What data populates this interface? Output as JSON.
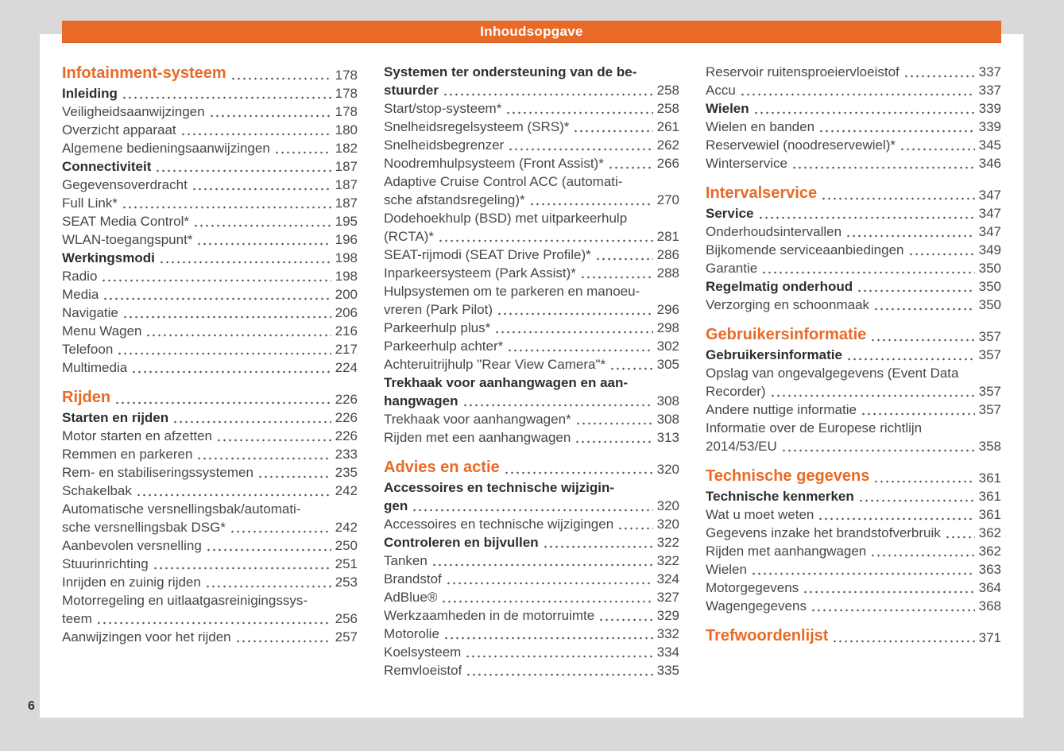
{
  "header": {
    "title": "Inhoudsopgave"
  },
  "footer": {
    "page_number": "6"
  },
  "colors": {
    "accent": "#E96A26",
    "canvas_bg": "#D9D9D9",
    "page_bg": "#FFFFFF",
    "text": "#474747"
  },
  "toc": {
    "columns": [
      [
        {
          "style": "section",
          "lines": [
            "Infotainment-systeem"
          ],
          "page": "178"
        },
        {
          "style": "bold",
          "lines": [
            "Inleiding"
          ],
          "page": "178"
        },
        {
          "style": "normal",
          "lines": [
            "Veiligheidsaanwijzingen"
          ],
          "page": "178"
        },
        {
          "style": "normal",
          "lines": [
            "Overzicht apparaat"
          ],
          "page": "180"
        },
        {
          "style": "normal",
          "lines": [
            "Algemene bedieningsaanwijzingen"
          ],
          "page": "182"
        },
        {
          "style": "bold",
          "lines": [
            "Connectiviteit"
          ],
          "page": "187"
        },
        {
          "style": "normal",
          "lines": [
            "Gegevensoverdracht"
          ],
          "page": "187"
        },
        {
          "style": "normal",
          "lines": [
            "Full Link*"
          ],
          "page": "187"
        },
        {
          "style": "normal",
          "lines": [
            "SEAT Media Control*"
          ],
          "page": "195"
        },
        {
          "style": "normal",
          "lines": [
            "WLAN-toegangspunt*"
          ],
          "page": "196"
        },
        {
          "style": "bold",
          "lines": [
            "Werkingsmodi"
          ],
          "page": "198"
        },
        {
          "style": "normal",
          "lines": [
            "Radio"
          ],
          "page": "198"
        },
        {
          "style": "normal",
          "lines": [
            "Media"
          ],
          "page": "200"
        },
        {
          "style": "normal",
          "lines": [
            "Navigatie"
          ],
          "page": "206"
        },
        {
          "style": "normal",
          "lines": [
            "Menu Wagen"
          ],
          "page": "216"
        },
        {
          "style": "normal",
          "lines": [
            "Telefoon"
          ],
          "page": "217"
        },
        {
          "style": "normal",
          "lines": [
            "Multimedia"
          ],
          "page": "224"
        },
        {
          "style": "section",
          "lines": [
            "Rijden"
          ],
          "page": "226"
        },
        {
          "style": "bold",
          "lines": [
            "Starten en rijden"
          ],
          "page": "226"
        },
        {
          "style": "normal",
          "lines": [
            "Motor starten en afzetten"
          ],
          "page": "226"
        },
        {
          "style": "normal",
          "lines": [
            "Remmen en parkeren"
          ],
          "page": "233"
        },
        {
          "style": "normal",
          "lines": [
            "Rem- en stabiliseringssystemen"
          ],
          "page": "235"
        },
        {
          "style": "normal",
          "lines": [
            "Schakelbak"
          ],
          "page": "242"
        },
        {
          "style": "normal",
          "lines": [
            "Automatische versnellingsbak/automati-",
            "sche versnellingsbak DSG*"
          ],
          "page": "242"
        },
        {
          "style": "normal",
          "lines": [
            "Aanbevolen versnelling"
          ],
          "page": "250"
        },
        {
          "style": "normal",
          "lines": [
            "Stuurinrichting"
          ],
          "page": "251"
        },
        {
          "style": "normal",
          "lines": [
            "Inrijden en zuinig rijden"
          ],
          "page": "253"
        },
        {
          "style": "normal",
          "lines": [
            "Motorregeling en uitlaatgasreinigingssys-",
            "teem"
          ],
          "page": "256"
        },
        {
          "style": "normal",
          "lines": [
            "Aanwijzingen voor het rijden"
          ],
          "page": "257"
        }
      ],
      [
        {
          "style": "bold",
          "lines": [
            "Systemen ter ondersteuning van de be-",
            "stuurder"
          ],
          "page": "258"
        },
        {
          "style": "normal",
          "lines": [
            "Start/stop-systeem*"
          ],
          "page": "258"
        },
        {
          "style": "normal",
          "lines": [
            "Snelheidsregelsysteem (SRS)*"
          ],
          "page": "261"
        },
        {
          "style": "normal",
          "lines": [
            "Snelheidsbegrenzer"
          ],
          "page": "262"
        },
        {
          "style": "normal",
          "lines": [
            "Noodremhulpsysteem (Front Assist)*"
          ],
          "page": "266"
        },
        {
          "style": "normal",
          "lines": [
            "Adaptive Cruise Control ACC (automati-",
            "sche afstandsregeling)*"
          ],
          "page": "270"
        },
        {
          "style": "normal",
          "lines": [
            "Dodehoekhulp (BSD) met uitparkeerhulp",
            "(RCTA)*"
          ],
          "page": "281"
        },
        {
          "style": "normal",
          "lines": [
            "SEAT-rijmodi (SEAT Drive Profile)*"
          ],
          "page": "286"
        },
        {
          "style": "normal",
          "lines": [
            "Inparkeersysteem (Park Assist)*"
          ],
          "page": "288"
        },
        {
          "style": "normal",
          "lines": [
            "Hulpsystemen om te parkeren en manoeu-",
            "vreren (Park Pilot)"
          ],
          "page": "296"
        },
        {
          "style": "normal",
          "lines": [
            "Parkeerhulp plus*"
          ],
          "page": "298"
        },
        {
          "style": "normal",
          "lines": [
            "Parkeerhulp achter*"
          ],
          "page": "302"
        },
        {
          "style": "normal",
          "lines": [
            "Achteruitrijhulp \"Rear View Camera\"*"
          ],
          "page": "305"
        },
        {
          "style": "bold",
          "lines": [
            "Trekhaak voor aanhangwagen en aan-",
            "hangwagen"
          ],
          "page": "308"
        },
        {
          "style": "normal",
          "lines": [
            "Trekhaak voor aanhangwagen*"
          ],
          "page": "308"
        },
        {
          "style": "normal",
          "lines": [
            "Rijden met een aanhangwagen"
          ],
          "page": "313"
        },
        {
          "style": "section",
          "lines": [
            "Advies en actie"
          ],
          "page": "320"
        },
        {
          "style": "bold",
          "lines": [
            "Accessoires en technische wijzigin-",
            "gen"
          ],
          "page": "320"
        },
        {
          "style": "normal",
          "lines": [
            "Accessoires en technische wijzigingen"
          ],
          "page": "320"
        },
        {
          "style": "bold",
          "lines": [
            "Controleren en bijvullen"
          ],
          "page": "322"
        },
        {
          "style": "normal",
          "lines": [
            "Tanken"
          ],
          "page": "322"
        },
        {
          "style": "normal",
          "lines": [
            "Brandstof"
          ],
          "page": "324"
        },
        {
          "style": "normal",
          "lines": [
            "AdBlue®"
          ],
          "page": "327"
        },
        {
          "style": "normal",
          "lines": [
            "Werkzaamheden in de motorruimte"
          ],
          "page": "329"
        },
        {
          "style": "normal",
          "lines": [
            "Motorolie"
          ],
          "page": "332"
        },
        {
          "style": "normal",
          "lines": [
            "Koelsysteem"
          ],
          "page": "334"
        },
        {
          "style": "normal",
          "lines": [
            "Remvloeistof"
          ],
          "page": "335"
        }
      ],
      [
        {
          "style": "normal",
          "lines": [
            "Reservoir ruitensproeiervloeistof"
          ],
          "page": "337"
        },
        {
          "style": "normal",
          "lines": [
            "Accu"
          ],
          "page": "337"
        },
        {
          "style": "bold",
          "lines": [
            "Wielen"
          ],
          "page": "339"
        },
        {
          "style": "normal",
          "lines": [
            "Wielen en banden"
          ],
          "page": "339"
        },
        {
          "style": "normal",
          "lines": [
            "Reservewiel (noodreservewiel)*"
          ],
          "page": "345"
        },
        {
          "style": "normal",
          "lines": [
            "Winterservice"
          ],
          "page": "346"
        },
        {
          "style": "section",
          "lines": [
            "Intervalservice"
          ],
          "page": "347"
        },
        {
          "style": "bold",
          "lines": [
            "Service"
          ],
          "page": "347"
        },
        {
          "style": "normal",
          "lines": [
            "Onderhoudsintervallen"
          ],
          "page": "347"
        },
        {
          "style": "normal",
          "lines": [
            "Bijkomende serviceaanbiedingen"
          ],
          "page": "349"
        },
        {
          "style": "normal",
          "lines": [
            "Garantie"
          ],
          "page": "350"
        },
        {
          "style": "bold",
          "lines": [
            "Regelmatig onderhoud"
          ],
          "page": "350"
        },
        {
          "style": "normal",
          "lines": [
            "Verzorging en schoonmaak"
          ],
          "page": "350"
        },
        {
          "style": "section",
          "lines": [
            "Gebruikersinformatie"
          ],
          "page": "357"
        },
        {
          "style": "bold",
          "lines": [
            "Gebruikersinformatie"
          ],
          "page": "357"
        },
        {
          "style": "normal",
          "lines": [
            "Opslag van ongevalgegevens (Event Data",
            "Recorder)"
          ],
          "page": "357"
        },
        {
          "style": "normal",
          "lines": [
            "Andere nuttige informatie"
          ],
          "page": "357"
        },
        {
          "style": "normal",
          "lines": [
            "Informatie over de Europese richtlijn",
            "2014/53/EU"
          ],
          "page": "358"
        },
        {
          "style": "section",
          "lines": [
            "Technische gegevens"
          ],
          "page": "361"
        },
        {
          "style": "bold",
          "lines": [
            "Technische kenmerken"
          ],
          "page": "361"
        },
        {
          "style": "normal",
          "lines": [
            "Wat u moet weten"
          ],
          "page": "361"
        },
        {
          "style": "normal",
          "lines": [
            "Gegevens inzake het brandstofverbruik"
          ],
          "page": "362"
        },
        {
          "style": "normal",
          "lines": [
            "Rijden met aanhangwagen"
          ],
          "page": "362"
        },
        {
          "style": "normal",
          "lines": [
            "Wielen"
          ],
          "page": "363"
        },
        {
          "style": "normal",
          "lines": [
            "Motorgegevens"
          ],
          "page": "364"
        },
        {
          "style": "normal",
          "lines": [
            "Wagengegevens"
          ],
          "page": "368"
        },
        {
          "style": "section",
          "lines": [
            "Trefwoordenlijst"
          ],
          "page": "371"
        }
      ]
    ]
  }
}
